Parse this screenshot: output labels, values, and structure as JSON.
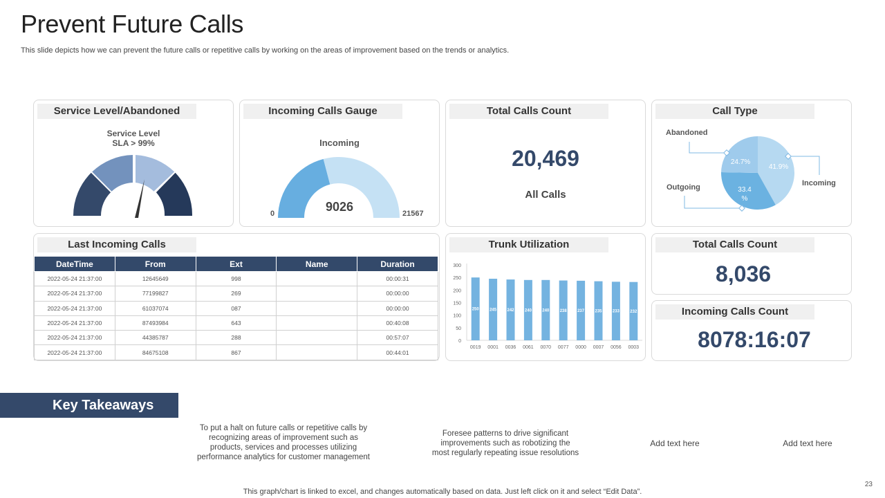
{
  "page": {
    "title": "Prevent Future Calls",
    "subtitle": "This slide depicts how we can prevent the future calls or repetitive calls by working on the areas of improvement based on the trends or analytics.",
    "footer": "This graph/chart is linked to excel,  and changes automatically based on data. Just left click on it and select “Edit Data”.",
    "page_number": "23"
  },
  "service_level": {
    "header": "Service Level/Abandoned",
    "label_line1": "Service Level",
    "label_line2": "SLA > 99%"
  },
  "incoming_gauge": {
    "header": "Incoming Calls Gauge",
    "label": "Incoming",
    "value": "9026",
    "min": "0",
    "max": "21567"
  },
  "total_calls": {
    "header": "Total Calls Count",
    "value": "20,469",
    "label": "All Calls"
  },
  "call_type": {
    "header": "Call Type",
    "labels": {
      "abandoned": "Abandoned",
      "outgoing": "Outgoing",
      "incoming": "Incoming"
    },
    "pct_abandoned": "24.7%",
    "pct_incoming": "41.9%",
    "pct_outgoing_line1": "33.4",
    "pct_outgoing_line2": "%"
  },
  "last_calls": {
    "header": "Last Incoming Calls",
    "columns": [
      "DateTime",
      "From",
      "Ext",
      "Name",
      "Duration"
    ],
    "rows": [
      [
        "2022-05-24 21:37:00",
        "12645649",
        "998",
        "",
        "00:00:31"
      ],
      [
        "2022-05-24 21:37:00",
        "77199827",
        "269",
        "",
        "00:00:00"
      ],
      [
        "2022-05-24 21:37:00",
        "61037074",
        "087",
        "",
        "00:00:00"
      ],
      [
        "2022-05-24 21:37:00",
        "87493984",
        "643",
        "",
        "00:40:08"
      ],
      [
        "2022-05-24 21:37:00",
        "44385787",
        "288",
        "",
        "00:57:07"
      ],
      [
        "2022-05-24 21:37:00",
        "84675108",
        "867",
        "",
        "00:44:01"
      ]
    ]
  },
  "trunk": {
    "header": "Trunk Utilization"
  },
  "total_calls_2": {
    "header": "Total Calls Count",
    "value": "8,036"
  },
  "incoming_count": {
    "header": "Incoming Calls Count",
    "value": "8078:16:07"
  },
  "takeaways": {
    "title": "Key Takeaways",
    "item1_lines": [
      "To put a halt on future calls or repetitive calls by",
      "recognizing areas of improvement such as",
      "products, services and processes utilizing",
      "performance analytics for customer management"
    ],
    "item2_lines": [
      "Foresee patterns to drive significant",
      "improvements such as  robotizing the",
      "most regularly repeating issue resolutions"
    ],
    "item3": "Add text here",
    "item4": "Add text here"
  },
  "colors": {
    "navy": "#34496a",
    "dark_navy": "#25395a",
    "mid_blue": "#7392bd",
    "light_blue": "#a4bcdd",
    "bar_blue": "#74b3e0",
    "pie_light": "#b6d9f1",
    "pie_mid": "#9fcbec",
    "pie_dark": "#6bb2e1",
    "gauge_fill": "#67aee0",
    "gauge_track": "#c5e1f4"
  },
  "chart_data": [
    {
      "type": "bar",
      "title": "Trunk Utilization",
      "categories": [
        "0019",
        "0001",
        "0036",
        "0061",
        "0070",
        "0077",
        "0000",
        "0007",
        "0056",
        "0003"
      ],
      "values": [
        250,
        245,
        242,
        240,
        240,
        238,
        237,
        235,
        233,
        232
      ],
      "ylim": [
        0,
        300
      ],
      "yticks": [
        0,
        50,
        100,
        150,
        200,
        250,
        300
      ],
      "grid": false
    },
    {
      "type": "pie",
      "title": "Call Type",
      "categories": [
        "Incoming",
        "Outgoing",
        "Abandoned"
      ],
      "values": [
        41.9,
        33.4,
        24.7
      ]
    },
    {
      "type": "gauge",
      "title": "Incoming Calls Gauge",
      "value": 9026,
      "min": 0,
      "max": 21567
    }
  ]
}
